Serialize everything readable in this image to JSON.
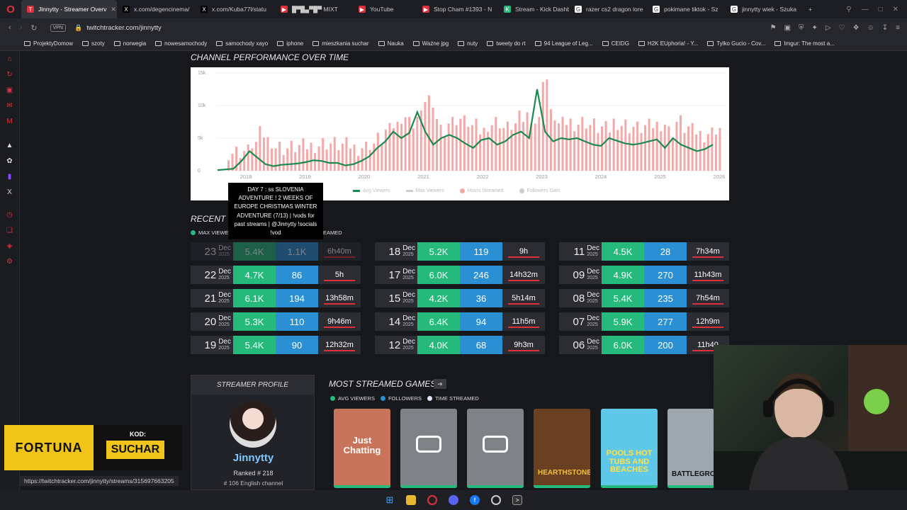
{
  "tabs": [
    {
      "label": "Jinnytty - Streamer Overv",
      "active": true,
      "fav": "T",
      "color": "#e0303c"
    },
    {
      "label": "x.com/degencinema/",
      "active": false,
      "fav": "X",
      "color": "#000"
    },
    {
      "label": "x.com/Kuba77l/statu",
      "active": false,
      "fav": "X",
      "color": "#000"
    },
    {
      "label": "█▀█▄▀█▀ MIXT",
      "active": false,
      "fav": "▶",
      "color": "#e0303c"
    },
    {
      "label": "YouTube",
      "active": false,
      "fav": "▶",
      "color": "#e0303c"
    },
    {
      "label": "Stop Cham #1393 - N",
      "active": false,
      "fav": "▶",
      "color": "#e0303c"
    },
    {
      "label": "Stream - Kick Dashb",
      "active": false,
      "fav": "K",
      "color": "#25b97c"
    },
    {
      "label": "razer cs2 dragon lore",
      "active": false,
      "fav": "G",
      "color": "#ffffff"
    },
    {
      "label": "pokimane tiktok - Sz",
      "active": false,
      "fav": "G",
      "color": "#ffffff"
    },
    {
      "label": "jinnytty wiek - Szuka",
      "active": false,
      "fav": "G",
      "color": "#ffffff"
    }
  ],
  "address": {
    "vpn": "VPN",
    "url": "twitchtracker.com/jinnytty"
  },
  "bookmarks": [
    "ProjektyDomow",
    "szoty",
    "norwegia",
    "nowesamochody",
    "samochody xayo",
    "iphone",
    "mieszkania suchar",
    "Nauka",
    "Ważne jpg",
    "nuty",
    "tweety do rt",
    "94 League of Leg...",
    "CEIDG",
    "H2K EUphoria! - Y...",
    "Tylko Gucio - Cov...",
    "Imgur: The most a..."
  ],
  "performance": {
    "title": "CHANNEL PERFORMANCE OVER TIME",
    "legend": [
      "Avg Viewers",
      "Max Viewers",
      "Hours Streamed",
      "Followers Gain"
    ],
    "tooltip": "DAY 7 : ss SLOVENIA ADVENTURE ! 2 WEEKS OF EUROPE CHRISTMAS WINTER ADVENTURE (7/13) | !vods for past streams | @Jinnytty !socials !vod"
  },
  "chart_data": {
    "type": "line",
    "title": "CHANNEL PERFORMANCE OVER TIME",
    "x_labels": [
      "2018",
      "2019",
      "2020",
      "2021",
      "2022",
      "2023",
      "2024",
      "2025",
      "2026"
    ],
    "y_ticks": [
      "0",
      "5k",
      "10k",
      "15k"
    ],
    "ylim": [
      0,
      15000
    ],
    "series": [
      {
        "name": "Avg Viewers",
        "color": "#1a8a4e",
        "values": [
          100,
          200,
          300,
          1500,
          3000,
          2000,
          1000,
          700,
          900,
          1000,
          1100,
          1300,
          1600,
          1500,
          1200,
          1200,
          800,
          1000,
          1500,
          2200,
          3500,
          4500,
          6000,
          5000,
          5800,
          9000,
          6000,
          4000,
          5000,
          5500,
          5000,
          4200,
          3500,
          4700,
          5000,
          4000,
          4500,
          5500,
          6000,
          5000,
          12500,
          6000,
          4500,
          5000,
          4800,
          5000,
          4500,
          4000,
          3800,
          5000,
          4600,
          4200,
          4000,
          4200,
          4500,
          4800,
          3500,
          5000,
          4000,
          3500,
          3000,
          3300,
          4000
        ]
      },
      {
        "name": "Hours Streamed",
        "color": "#f4a9a8",
        "values": []
      }
    ]
  },
  "recent": {
    "title": "RECENT S",
    "legend_left": "MAX VIEWE",
    "legend_right": "EAMED",
    "rows": [
      {
        "day": "23",
        "mon": "Dec",
        "yr": "2025",
        "avg": "5.4K",
        "fol": "1.1K",
        "hrs": "6h40m",
        "faded": true
      },
      {
        "day": "22",
        "mon": "Dec",
        "yr": "2025",
        "avg": "4.7K",
        "fol": "86",
        "hrs": "5h"
      },
      {
        "day": "21",
        "mon": "Dec",
        "yr": "2025",
        "avg": "6.1K",
        "fol": "194",
        "hrs": "13h58m"
      },
      {
        "day": "20",
        "mon": "Dec",
        "yr": "2025",
        "avg": "5.3K",
        "fol": "110",
        "hrs": "9h46m"
      },
      {
        "day": "19",
        "mon": "Dec",
        "yr": "2025",
        "avg": "5.4K",
        "fol": "90",
        "hrs": "12h32m"
      },
      {
        "day": "18",
        "mon": "Dec",
        "yr": "2025",
        "avg": "5.2K",
        "fol": "119",
        "hrs": "9h"
      },
      {
        "day": "17",
        "mon": "Dec",
        "yr": "2025",
        "avg": "6.0K",
        "fol": "246",
        "hrs": "14h32m"
      },
      {
        "day": "15",
        "mon": "Dec",
        "yr": "2025",
        "avg": "4.2K",
        "fol": "36",
        "hrs": "5h14m"
      },
      {
        "day": "14",
        "mon": "Dec",
        "yr": "2025",
        "avg": "6.4K",
        "fol": "94",
        "hrs": "11h5m"
      },
      {
        "day": "12",
        "mon": "Dec",
        "yr": "2025",
        "avg": "4.0K",
        "fol": "68",
        "hrs": "9h3m"
      },
      {
        "day": "11",
        "mon": "Dec",
        "yr": "2025",
        "avg": "4.5K",
        "fol": "28",
        "hrs": "7h34m"
      },
      {
        "day": "09",
        "mon": "Dec",
        "yr": "2025",
        "avg": "4.9K",
        "fol": "270",
        "hrs": "11h43m"
      },
      {
        "day": "08",
        "mon": "Dec",
        "yr": "2025",
        "avg": "5.4K",
        "fol": "235",
        "hrs": "7h54m"
      },
      {
        "day": "07",
        "mon": "Dec",
        "yr": "2025",
        "avg": "5.9K",
        "fol": "277",
        "hrs": "12h9m"
      },
      {
        "day": "06",
        "mon": "Dec",
        "yr": "2025",
        "avg": "6.0K",
        "fol": "200",
        "hrs": "11h40"
      }
    ]
  },
  "profile": {
    "header": "STREAMER PROFILE",
    "name": "Jinnytty",
    "rank": "Ranked # 218",
    "rank2": "# 106 English channel"
  },
  "games": {
    "title": "MOST STREAMED GAMES",
    "legend": [
      "AVG VIEWERS",
      "FOLLOWERS",
      "TIME STREAMED"
    ],
    "items": [
      {
        "label": "Just Chatting",
        "bg": "#c8745a",
        "fg": "#fff"
      },
      {
        "label": "",
        "bg": "#7f8287",
        "fg": "#fff"
      },
      {
        "label": "",
        "bg": "#7f8287",
        "fg": "#fff"
      },
      {
        "label": "HEARTHSTONE",
        "bg": "#6a3f22",
        "fg": "#f0c040"
      },
      {
        "label": "POOLS HOT TUBS AND BEACHES",
        "bg": "#5fc7e8",
        "fg": "#ffe244"
      },
      {
        "label": "BATTLEGROUND",
        "bg": "#9da7ad",
        "fg": "#111"
      }
    ]
  },
  "ad": {
    "brand": "FORTUNA",
    "kod": "KOD:",
    "code": "SUCHAR"
  },
  "status_url": "https://twitchtracker.com/jinnytty/streams/315697663205"
}
